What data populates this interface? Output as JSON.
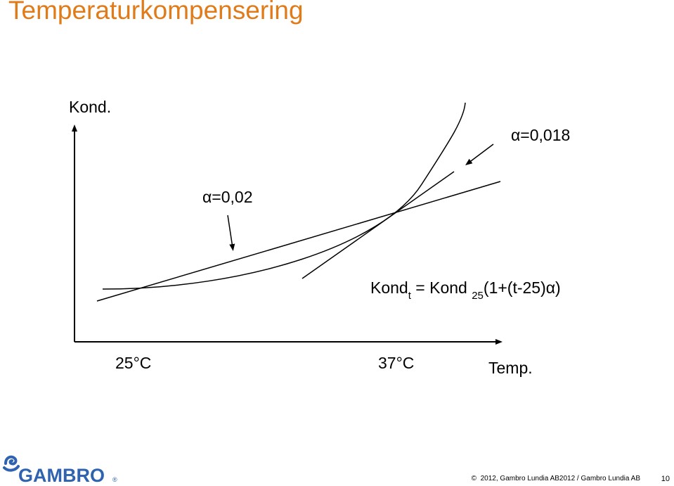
{
  "slide": {
    "title": "Temperaturkompensering",
    "page_number": "10",
    "copyright": "2012, Gambro Lundia AB2012 / Gambro Lundia AB",
    "copyright_symbol": "©",
    "logo_text": "GAMBRO",
    "logo_reg": "®"
  },
  "diagram": {
    "y_axis_label": "Kond.",
    "x_axis_label": "Temp.",
    "tick_25": "25°C",
    "tick_37": "37°C",
    "alpha_018": "α=0,018",
    "alpha_02": "α=0,02",
    "formula": {
      "kond": "Kond",
      "sub_t": "t",
      "eq": " = Kond ",
      "sub_25": "25",
      "rest": "(1+(t-25)α)"
    }
  }
}
